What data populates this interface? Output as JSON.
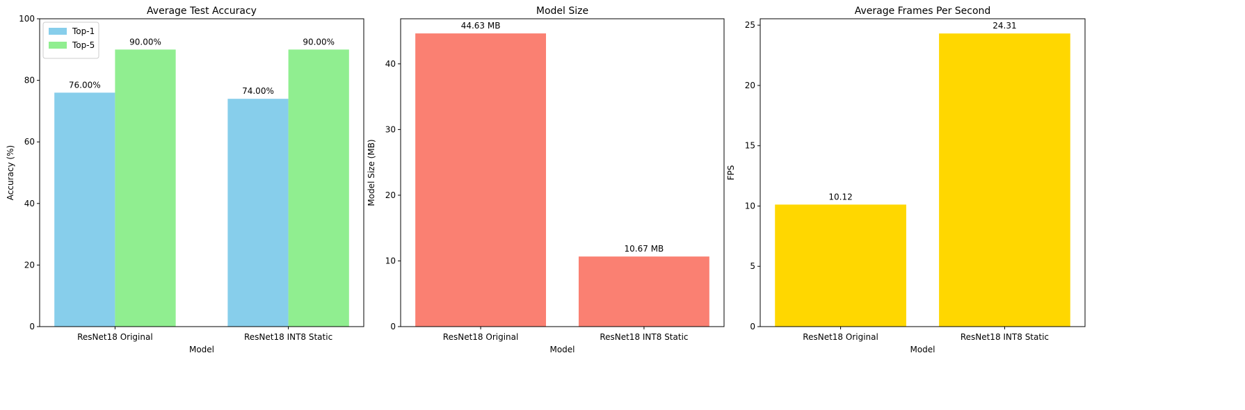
{
  "chart_data": [
    {
      "type": "bar",
      "title": "Average Test Accuracy",
      "xlabel": "Model",
      "ylabel": "Accuracy (%)",
      "categories": [
        "ResNet18 Original",
        "ResNet18 INT8 Static"
      ],
      "series": [
        {
          "name": "Top-1",
          "values": [
            76.0,
            74.0
          ],
          "labels": [
            "76.00%",
            "74.00%"
          ],
          "color": "#87ceeb"
        },
        {
          "name": "Top-5",
          "values": [
            90.0,
            90.0
          ],
          "labels": [
            "90.00%",
            "90.00%"
          ],
          "color": "#90ee90"
        }
      ],
      "ylim": [
        0,
        100
      ],
      "yticks": [
        0,
        20,
        40,
        60,
        80,
        100
      ],
      "legend": "top-left",
      "grid": false
    },
    {
      "type": "bar",
      "title": "Model Size",
      "xlabel": "Model",
      "ylabel": "Model Size (MB)",
      "categories": [
        "ResNet18 Original",
        "ResNet18 INT8 Static"
      ],
      "series": [
        {
          "values": [
            44.63,
            10.67
          ],
          "labels": [
            "44.63 MB",
            "10.67 MB"
          ],
          "color": "#fa8072"
        }
      ],
      "ylim": [
        0,
        46.86
      ],
      "yticks": [
        0,
        10,
        20,
        30,
        40
      ],
      "grid": false
    },
    {
      "type": "bar",
      "title": "Average Frames Per Second",
      "xlabel": "Model",
      "ylabel": "FPS",
      "categories": [
        "ResNet18 Original",
        "ResNet18 INT8 Static"
      ],
      "series": [
        {
          "values": [
            10.12,
            24.31
          ],
          "labels": [
            "10.12",
            "24.31"
          ],
          "color": "#ffd700"
        }
      ],
      "ylim": [
        0,
        25.53
      ],
      "yticks": [
        0,
        5,
        10,
        15,
        20,
        25
      ],
      "grid": false
    }
  ]
}
